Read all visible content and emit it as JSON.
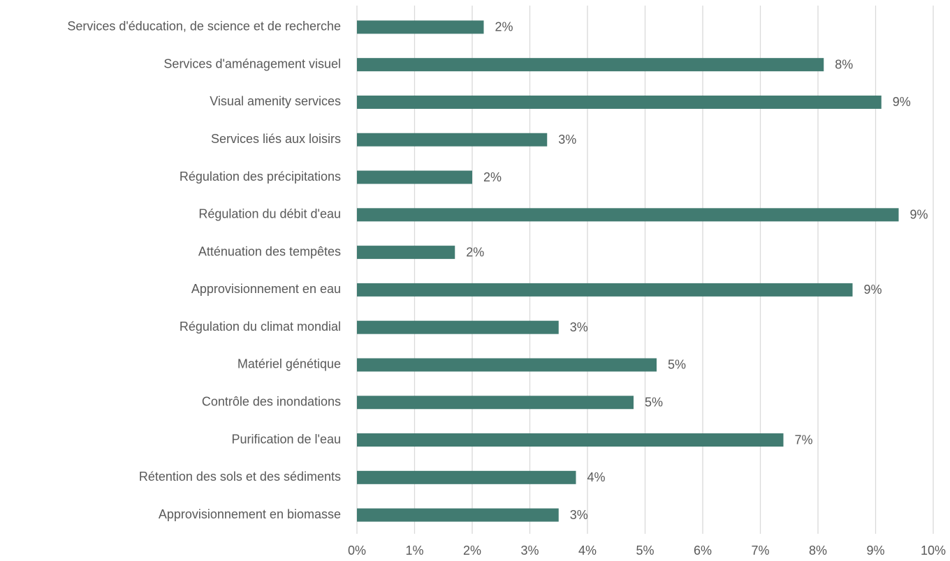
{
  "chart_data": {
    "type": "bar",
    "orientation": "horizontal",
    "categories": [
      "Services d'éducation, de science et de recherche",
      "Services d'aménagement visuel",
      "Visual amenity services",
      "Services liés aux loisirs",
      "Régulation des précipitations",
      "Régulation du débit d'eau",
      "Atténuation des tempêtes",
      "Approvisionnement en eau",
      "Régulation du climat mondial",
      "Matériel génétique",
      "Contrôle des inondations",
      "Purification de l'eau",
      "Rétention des sols et des sédiments",
      "Approvisionnement en biomasse"
    ],
    "values": [
      2.2,
      8.1,
      9.1,
      3.3,
      2.0,
      9.4,
      1.7,
      8.6,
      3.5,
      5.2,
      4.8,
      7.4,
      3.8,
      3.5
    ],
    "value_labels": [
      "2%",
      "8%",
      "9%",
      "3%",
      "2%",
      "9%",
      "2%",
      "9%",
      "3%",
      "5%",
      "5%",
      "7%",
      "4%",
      "3%"
    ],
    "color": "#417b71",
    "xlim": [
      0,
      10
    ],
    "xticks": [
      {
        "value": 0,
        "label": "0%"
      },
      {
        "value": 1,
        "label": "1%"
      },
      {
        "value": 2,
        "label": "2%"
      },
      {
        "value": 3,
        "label": "3%"
      },
      {
        "value": 4,
        "label": "4%"
      },
      {
        "value": 5,
        "label": "5%"
      },
      {
        "value": 6,
        "label": "6%"
      },
      {
        "value": 7,
        "label": "7%"
      },
      {
        "value": 8,
        "label": "8%"
      },
      {
        "value": 9,
        "label": "9%"
      },
      {
        "value": 10,
        "label": "10%"
      }
    ],
    "grid": true
  }
}
